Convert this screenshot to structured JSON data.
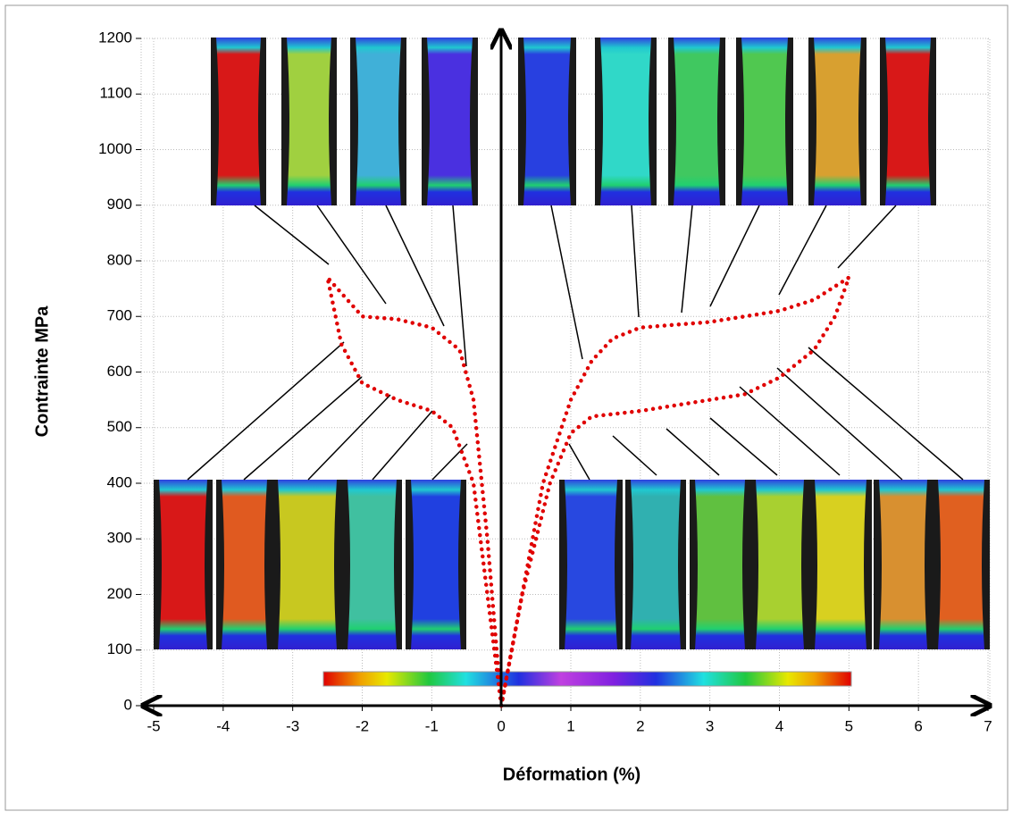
{
  "chart_data": {
    "type": "line",
    "xlabel": "Déformation (%)",
    "ylabel": "Contrainte MPa",
    "xlim": [
      -5,
      7
    ],
    "ylim": [
      0,
      1200
    ],
    "xticks": [
      -5,
      -4,
      -3,
      -2,
      -1,
      0,
      1,
      2,
      3,
      4,
      5,
      6,
      7
    ],
    "yticks": [
      0,
      100,
      200,
      300,
      400,
      500,
      600,
      700,
      800,
      900,
      1000,
      1100,
      1200
    ],
    "grid": true,
    "series": [
      {
        "color": "#e00000",
        "x": [
          0,
          -0.2,
          -0.4,
          -0.6,
          -1,
          -1.5,
          -2,
          -2.5,
          -2.3,
          -2,
          -1.5,
          -1,
          -0.7,
          -0.4,
          -0.2,
          0
        ],
        "values": [
          0,
          300,
          550,
          640,
          680,
          695,
          700,
          770,
          650,
          580,
          550,
          530,
          500,
          400,
          200,
          0
        ]
      },
      {
        "color": "#e00000",
        "x": [
          0,
          0.3,
          0.6,
          1,
          1.3,
          1.6,
          2,
          3,
          4,
          4.5,
          5,
          4.8,
          4.5,
          4,
          3.5,
          3,
          2,
          1.3,
          1,
          0.7,
          0.3,
          0
        ],
        "values": [
          0,
          200,
          400,
          550,
          620,
          660,
          680,
          690,
          710,
          730,
          770,
          700,
          640,
          590,
          560,
          550,
          530,
          520,
          490,
          400,
          200,
          0
        ]
      }
    ]
  }
}
